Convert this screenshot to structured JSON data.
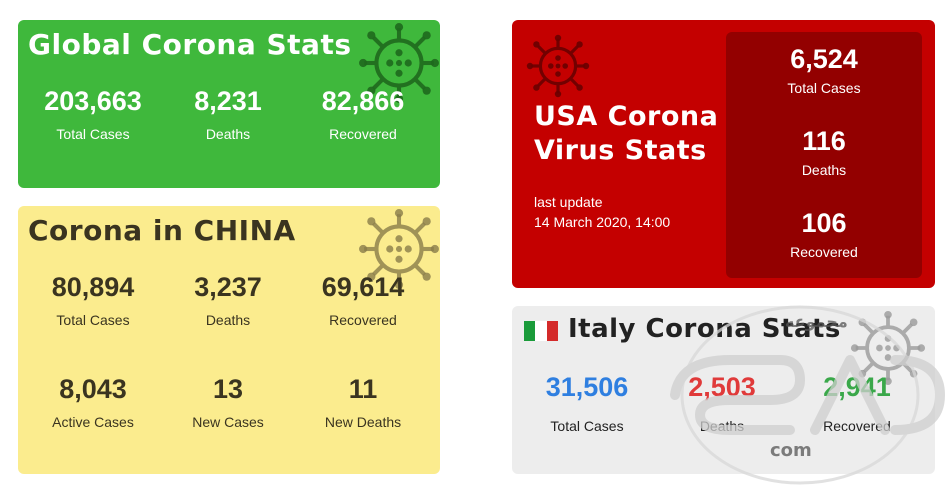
{
  "global": {
    "title": "Global Corona Stats",
    "stats": [
      {
        "value": "203,663",
        "label": "Total Cases"
      },
      {
        "value": "8,231",
        "label": "Deaths"
      },
      {
        "value": "82,866",
        "label": "Recovered"
      }
    ]
  },
  "china": {
    "title": "Corona in CHINA",
    "stats": [
      {
        "value": "80,894",
        "label": "Total Cases"
      },
      {
        "value": "3,237",
        "label": "Deaths"
      },
      {
        "value": "69,614",
        "label": "Recovered"
      },
      {
        "value": "8,043",
        "label": "Active Cases"
      },
      {
        "value": "13",
        "label": "New Cases"
      },
      {
        "value": "11",
        "label": "New Deaths"
      }
    ]
  },
  "usa": {
    "title_line1": "USA Corona",
    "title_line2": "Virus Stats",
    "update_label": "last update",
    "update_time": "14 March 2020, 14:00",
    "stats": [
      {
        "value": "6,524",
        "label": "Total Cases"
      },
      {
        "value": "116",
        "label": "Deaths"
      },
      {
        "value": "106",
        "label": "Recovered"
      }
    ]
  },
  "italy": {
    "title": "Italy Corona Stats",
    "stats": [
      {
        "value": "31,506",
        "label": "Total Cases"
      },
      {
        "value": "2,503",
        "label": "Deaths"
      },
      {
        "value": "2,941",
        "label": "Recovered"
      }
    ]
  },
  "watermark": {
    "top_text": "مجموعه",
    "bottom_text": "com"
  },
  "colors": {
    "global_bg": "#3fb83c",
    "china_bg": "#fbec8e",
    "usa_bg": "#c40000",
    "usa_inner_bg": "#930000",
    "italy_bg": "#ededed",
    "italy_total": "#2f7fe0",
    "italy_deaths": "#e03a3a",
    "italy_recovered": "#3aa84a"
  },
  "icons": {
    "virus": "virus-icon",
    "flag": "italy-flag-icon"
  }
}
